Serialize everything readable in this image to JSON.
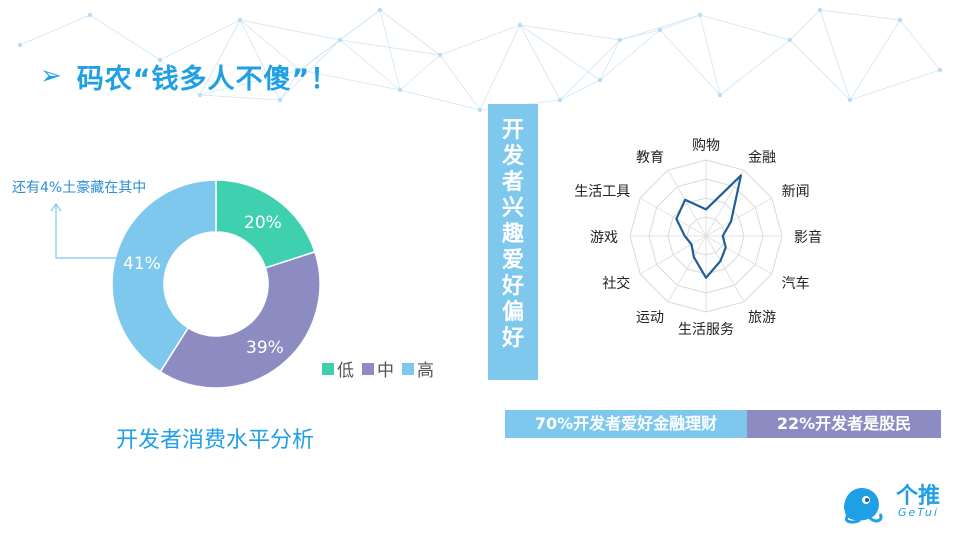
{
  "title": "码农“钱多人不傻”！",
  "title_arrow": "➢",
  "donut": {
    "caption": "开发者消费水平分析",
    "note": "还有4%土豪藏在其中",
    "segments": [
      {
        "label": "低",
        "value": 20,
        "pct_text": "20%",
        "color": "#3fd0b0"
      },
      {
        "label": "中",
        "value": 39,
        "pct_text": "39%",
        "color": "#8c8cc2"
      },
      {
        "label": "高",
        "value": 41,
        "pct_text": "41%",
        "color": "#7ec8ee"
      }
    ]
  },
  "interest_heading": "开发者兴趣爱好偏好",
  "chart_data": {
    "type": "radar",
    "title": "开发者兴趣爱好偏好",
    "categories": [
      "购物",
      "金融",
      "新闻",
      "影音",
      "汽车",
      "旅游",
      "生活服务",
      "运动",
      "社交",
      "游戏",
      "生活工具",
      "教育"
    ],
    "values": [
      0.35,
      0.92,
      0.38,
      0.22,
      0.3,
      0.38,
      0.55,
      0.32,
      0.22,
      0.28,
      0.45,
      0.55
    ],
    "line_color": "#1f5f99",
    "grid_rings": 4
  },
  "stats": {
    "finance": "70%开发者爱好金融理财",
    "stocks": "22%开发者是股民"
  },
  "logo": {
    "cn": "个推",
    "en": "GeTui"
  }
}
